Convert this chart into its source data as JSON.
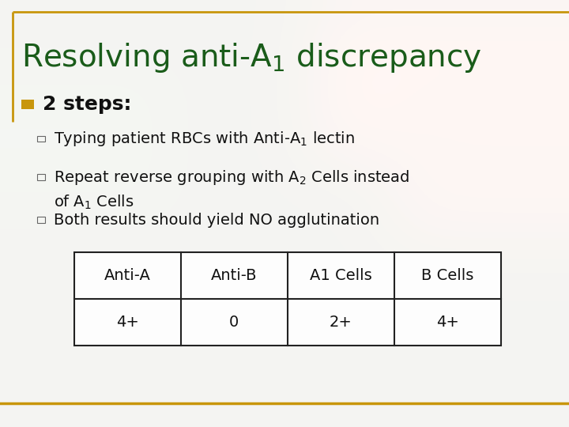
{
  "title_color": "#1A5C1A",
  "title_fontsize": 28,
  "bullet_color": "#C8960C",
  "bullet_text": "2 steps:",
  "bullet_fontsize": 18,
  "sub_bullet_fontsize": 14,
  "sub_text_color": "#111111",
  "table_headers": [
    "Anti-A",
    "Anti-B",
    "A1 Cells",
    "B Cells"
  ],
  "table_values": [
    "4+",
    "0",
    "2+",
    "4+"
  ],
  "table_fontsize": 14,
  "border_color": "#C8960C",
  "left_bar_color": "#C8960C",
  "slide_bg": "#F5F5F0"
}
